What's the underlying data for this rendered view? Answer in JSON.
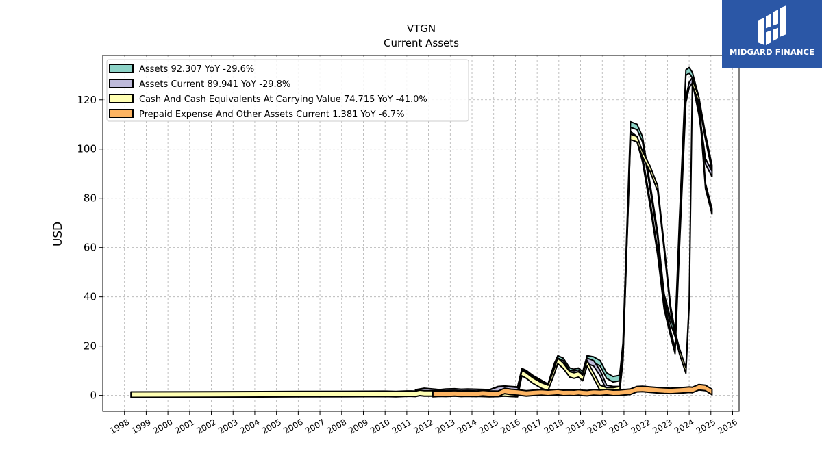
{
  "chart_data": {
    "type": "area",
    "title": "VTGN",
    "subtitle": "Current  Assets",
    "ylabel": "USD",
    "xlim": [
      1997,
      2026.3
    ],
    "ylim": [
      -6.5,
      138
    ],
    "yticks": [
      0,
      20,
      40,
      60,
      80,
      100,
      120
    ],
    "xticks": [
      1998,
      1999,
      2000,
      2001,
      2002,
      2003,
      2004,
      2005,
      2006,
      2007,
      2008,
      2009,
      2010,
      2011,
      2012,
      2013,
      2014,
      2015,
      2016,
      2017,
      2018,
      2019,
      2020,
      2021,
      2022,
      2023,
      2024,
      2025,
      2026
    ],
    "grid": true,
    "legend_position": "top-left",
    "series": [
      {
        "name": "Assets",
        "legend": "Assets  92.307 YoY -29.6%",
        "color": "#8dd3c7",
        "x": [
          2011.4,
          2011.6,
          2011.8,
          2012.2,
          2012.5,
          2012.8,
          2013.2,
          2013.5,
          2013.8,
          2014.2,
          2014.5,
          2014.8,
          2015.2,
          2015.5,
          2015.8,
          2016.1,
          2016.3,
          2016.5,
          2016.8,
          2017.2,
          2017.5,
          2017.8,
          2017.95,
          2018.2,
          2018.5,
          2018.7,
          2018.9,
          2019.1,
          2019.3,
          2019.6,
          2019.9,
          2020.2,
          2020.5,
          2020.8,
          2020.95,
          2021.3,
          2021.6,
          2021.85,
          2022.2,
          2022.55,
          2022.85,
          2023.15,
          2023.35,
          2023.55,
          2023.85,
          2024.0,
          2024.15,
          2024.45,
          2024.75,
          2025.05
        ],
        "values": [
          1.2,
          1.5,
          1.8,
          1.5,
          1.2,
          1.5,
          1.6,
          1.4,
          1.5,
          1.4,
          1.3,
          1.2,
          2.5,
          2.7,
          2.5,
          2.3,
          9.8,
          9.0,
          7.0,
          5.0,
          3.5,
          12.0,
          15.0,
          14.0,
          10.0,
          9.5,
          10.0,
          8.5,
          15.0,
          14.5,
          13.0,
          8.0,
          6.5,
          7.0,
          20.0,
          110.0,
          109.0,
          104.0,
          85.0,
          65.0,
          40.0,
          30.0,
          25.0,
          70.0,
          131.0,
          132.0,
          130.0,
          120.0,
          105.0,
          92.3
        ]
      },
      {
        "name": "Assets Current",
        "legend": "Assets Current  89.941 YoY -29.8%",
        "color": "#bebada",
        "x": [
          2011.4,
          2011.6,
          2011.8,
          2012.2,
          2012.5,
          2012.8,
          2013.2,
          2013.5,
          2013.8,
          2014.2,
          2014.5,
          2014.8,
          2015.2,
          2015.5,
          2015.8,
          2016.1,
          2016.3,
          2016.5,
          2016.8,
          2017.2,
          2017.5,
          2017.8,
          2017.95,
          2018.2,
          2018.5,
          2018.7,
          2018.9,
          2019.1,
          2019.3,
          2019.6,
          2019.9,
          2020.2,
          2020.5,
          2020.8,
          2020.95,
          2021.3,
          2021.6,
          2021.85,
          2022.2,
          2022.55,
          2022.85,
          2023.15,
          2023.35,
          2023.55,
          2023.85,
          2024.0,
          2024.15,
          2024.45,
          2024.75,
          2025.05
        ],
        "values": [
          1.1,
          1.4,
          1.7,
          1.4,
          1.1,
          1.4,
          1.5,
          1.3,
          1.4,
          1.3,
          1.2,
          1.1,
          2.3,
          2.5,
          2.3,
          2.1,
          9.5,
          8.5,
          6.5,
          4.5,
          3.0,
          11.0,
          14.0,
          13.0,
          9.0,
          8.8,
          9.2,
          7.5,
          14.0,
          13.0,
          9.0,
          3.0,
          2.5,
          2.5,
          15.0,
          106.0,
          104.0,
          96.0,
          78.0,
          58.0,
          36.0,
          25.0,
          18.0,
          60.0,
          120.0,
          126.0,
          128.0,
          115.0,
          95.0,
          89.9
        ]
      },
      {
        "name": "Cash And Cash Equivalents At Carrying Value",
        "legend": "Cash And Cash Equivalents At Carrying Value  74.715 YoY -41.0%",
        "color": "#ffffb3",
        "x": [
          1998.3,
          2002.0,
          2006.0,
          2010.0,
          2010.5,
          2010.8,
          2011.0,
          2011.2,
          2011.4,
          2011.6,
          2011.8,
          2012.2,
          2012.5,
          2012.8,
          2013.2,
          2013.5,
          2013.8,
          2014.2,
          2014.5,
          2014.8,
          2015.2,
          2015.5,
          2015.8,
          2016.1,
          2016.3,
          2016.5,
          2016.8,
          2017.2,
          2017.5,
          2017.8,
          2017.95,
          2018.2,
          2018.5,
          2018.7,
          2018.9,
          2019.1,
          2019.3,
          2019.6,
          2019.9,
          2020.2,
          2020.5,
          2020.8,
          2020.95,
          2021.3,
          2021.6,
          2021.85,
          2022.2,
          2022.55,
          2022.85,
          2023.15,
          2023.35,
          2023.55,
          2023.85,
          2024.0,
          2024.15,
          2024.45,
          2024.75,
          2025.05
        ],
        "values": [
          0.3,
          0.4,
          0.5,
          0.6,
          0.5,
          0.6,
          0.7,
          0.7,
          0.6,
          1.0,
          0.8,
          0.8,
          0.7,
          0.8,
          0.9,
          0.7,
          0.8,
          0.7,
          0.6,
          0.5,
          0.6,
          0.8,
          0.6,
          0.5,
          9.0,
          8.0,
          6.0,
          4.0,
          3.0,
          10.0,
          14.0,
          12.0,
          8.5,
          8.0,
          8.5,
          7.0,
          13.0,
          8.0,
          3.0,
          2.0,
          2.0,
          2.5,
          15.0,
          105.0,
          104.0,
          98.0,
          92.0,
          84.0,
          60.0,
          35.0,
          25.0,
          18.0,
          10.0,
          37.0,
          127.0,
          120.0,
          85.0,
          74.7
        ]
      },
      {
        "name": "Prepaid Expense And Other Assets Current",
        "legend": "Prepaid Expense And Other Assets Current  1.381 YoY -6.7%",
        "color": "#fdb462",
        "x": [
          2012.2,
          2012.5,
          2012.8,
          2013.2,
          2013.5,
          2013.8,
          2014.2,
          2014.5,
          2014.8,
          2015.2,
          2015.5,
          2015.8,
          2016.1,
          2016.3,
          2016.5,
          2016.8,
          2017.2,
          2017.5,
          2017.8,
          2017.95,
          2018.2,
          2018.5,
          2018.7,
          2018.9,
          2019.1,
          2019.3,
          2019.6,
          2019.9,
          2020.2,
          2020.5,
          2020.8,
          2020.95,
          2021.3,
          2021.6,
          2021.85,
          2022.2,
          2022.55,
          2022.85,
          2023.15,
          2023.35,
          2023.55,
          2023.85,
          2024.0,
          2024.15,
          2024.45,
          2024.75,
          2025.05
        ],
        "values": [
          0.5,
          0.7,
          0.6,
          0.8,
          0.6,
          0.7,
          0.6,
          0.9,
          0.7,
          0.6,
          1.8,
          1.4,
          1.2,
          1.0,
          0.8,
          1.0,
          1.2,
          1.0,
          1.2,
          1.3,
          1.0,
          1.1,
          1.0,
          1.2,
          1.0,
          0.9,
          1.2,
          1.1,
          1.3,
          1.0,
          1.1,
          1.2,
          1.5,
          2.5,
          2.6,
          2.3,
          2.1,
          1.9,
          1.8,
          1.9,
          2.0,
          2.2,
          2.3,
          2.2,
          3.3,
          3.0,
          1.4
        ]
      }
    ]
  },
  "logo": {
    "name": "MIDGARD FINANCE",
    "bg_color": "#2b57a6"
  }
}
